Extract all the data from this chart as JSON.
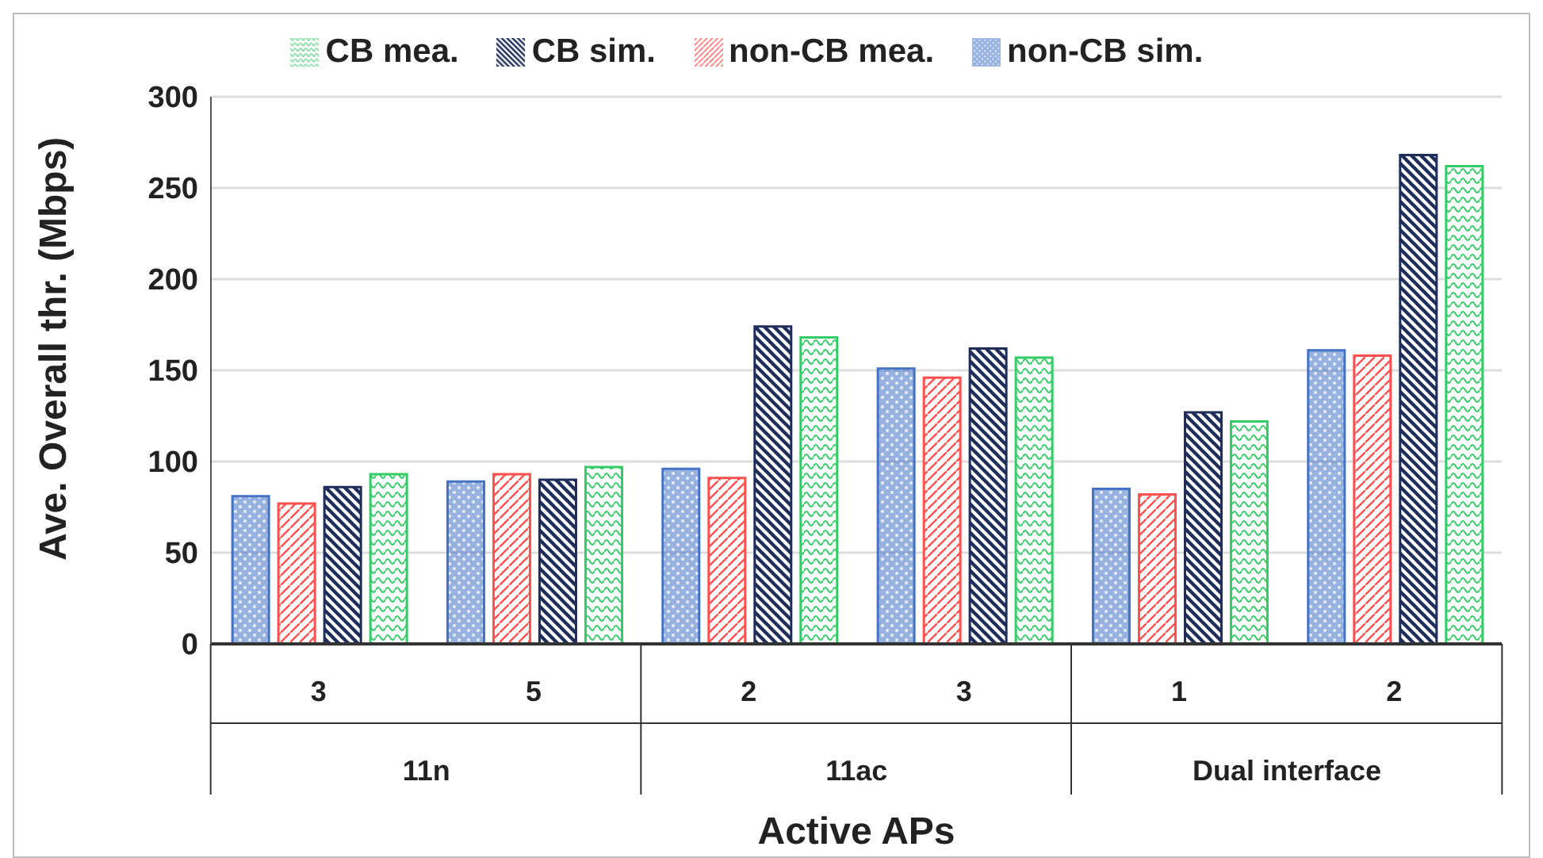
{
  "chart_data": {
    "type": "bar",
    "xlabel": "Active APs",
    "ylabel": "Ave. Overall thr. (Mbps)",
    "categories": [
      "3",
      "5",
      "2",
      "3",
      "1",
      "2"
    ],
    "annotations": [
      "11n",
      "11ac",
      "Dual interface"
    ],
    "series": [
      {
        "name": "non-CB sim.",
        "color": "#4472c4",
        "values": [
          81,
          89,
          96,
          151,
          85,
          161
        ]
      },
      {
        "name": "non-CB mea.",
        "color": "#ff5050",
        "values": [
          77,
          93,
          91,
          146,
          82,
          158
        ]
      },
      {
        "name": "CB sim.",
        "color": "#1f2d5a",
        "values": [
          86,
          90,
          174,
          162,
          127,
          268
        ]
      },
      {
        "name": "CB mea.",
        "color": "#33cc66",
        "values": [
          93,
          97,
          168,
          157,
          122,
          262
        ]
      }
    ],
    "ylim": [
      0,
      300
    ],
    "yticks": [
      0,
      50,
      100,
      150,
      200,
      250,
      300
    ],
    "grid": "y",
    "legend": "top"
  }
}
